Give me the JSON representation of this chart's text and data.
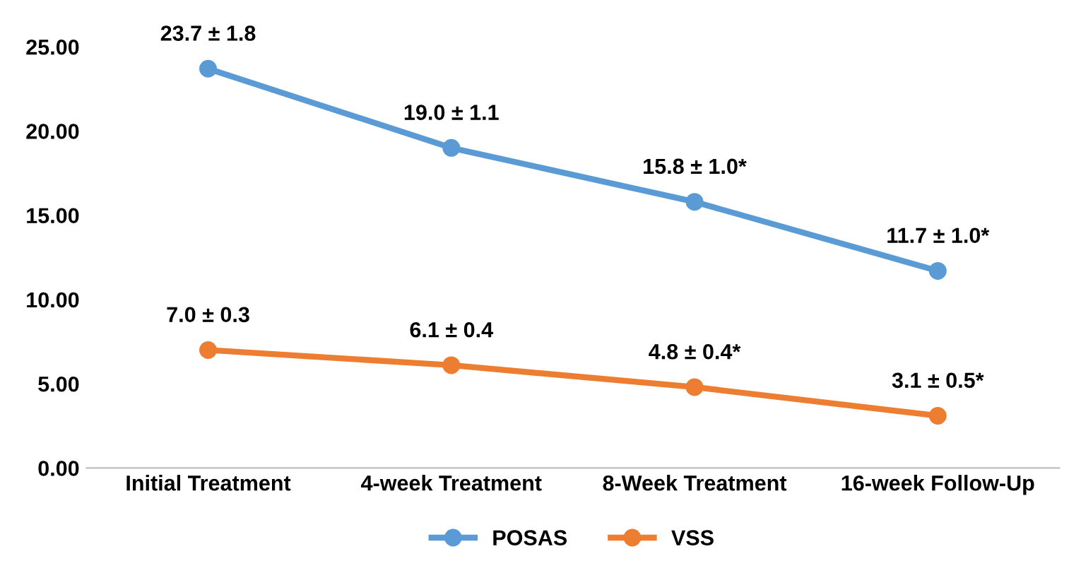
{
  "chart_data": {
    "type": "line",
    "categories": [
      "Initial Treatment",
      "4-week Treatment",
      "8-Week Treatment",
      "16-week Follow-Up"
    ],
    "series": [
      {
        "name": "POSAS",
        "color": "#5b9bd5",
        "values": [
          23.7,
          19.0,
          15.8,
          11.7
        ],
        "value_labels": [
          "23.7 ± 1.8",
          "19.0 ± 1.1",
          "15.8 ± 1.0*",
          "11.7 ± 1.0*"
        ]
      },
      {
        "name": "VSS",
        "color": "#ed7d31",
        "values": [
          7.0,
          6.1,
          4.8,
          3.1
        ],
        "value_labels": [
          "7.0 ± 0.3",
          "6.1 ± 0.4",
          "4.8 ± 0.4*",
          "3.1 ± 0.5*"
        ]
      }
    ],
    "ylim": [
      0,
      25
    ],
    "yticks": [
      {
        "value": 0,
        "label": "0.00"
      },
      {
        "value": 5,
        "label": "5.00"
      },
      {
        "value": 10,
        "label": "10.00"
      },
      {
        "value": 15,
        "label": "15.00"
      },
      {
        "value": 20,
        "label": "20.00"
      },
      {
        "value": 25,
        "label": "25.00"
      }
    ],
    "grid": false,
    "legend": "bottom",
    "marker": "circle",
    "line_style": "solid"
  }
}
